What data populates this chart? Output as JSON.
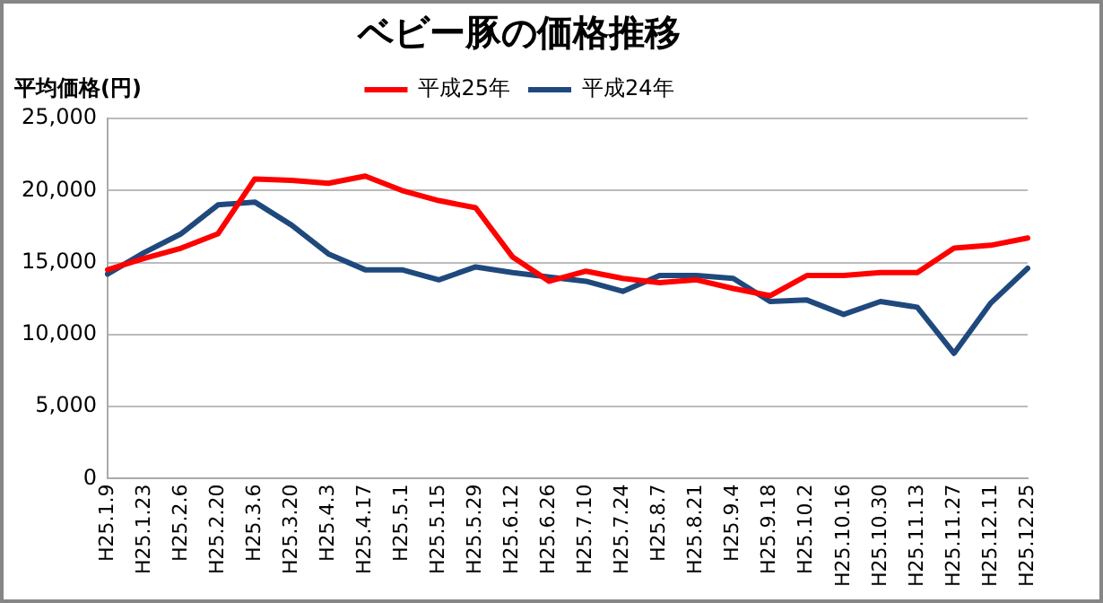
{
  "chart_data": {
    "type": "line",
    "title": "ベビー豚の価格推移",
    "ylabel": "平均価格(円)",
    "categories": [
      "H25.1.9",
      "H25.1.23",
      "H25.2.6",
      "H25.2.20",
      "H25.3.6",
      "H25.3.20",
      "H25.4.3",
      "H25.4.17",
      "H25.5.1",
      "H25.5.15",
      "H25.5.29",
      "H25.6.12",
      "H25.6.26",
      "H25.7.10",
      "H25.7.24",
      "H25.8.7",
      "H25.8.21",
      "H25.9.4",
      "H25.9.18",
      "H25.10.2",
      "H25.10.16",
      "H25.10.30",
      "H25.11.13",
      "H25.11.27",
      "H25.12.11",
      "H25.12.25"
    ],
    "series": [
      {
        "name": "平成25年",
        "color": "#ff0000",
        "values": [
          14500,
          15300,
          16000,
          17000,
          20800,
          20700,
          20500,
          21000,
          20000,
          19300,
          18800,
          15400,
          13700,
          14400,
          13900,
          13600,
          13800,
          13200,
          12700,
          14100,
          14100,
          14300,
          14300,
          16000,
          16200,
          16700
        ]
      },
      {
        "name": "平成24年",
        "color": "#1f497d",
        "values": [
          14200,
          15700,
          17000,
          19000,
          19200,
          17600,
          15600,
          14500,
          14500,
          13800,
          14700,
          14300,
          14000,
          13700,
          13000,
          14100,
          14100,
          13900,
          12300,
          12400,
          11400,
          12300,
          11900,
          8700,
          12200,
          14600
        ]
      }
    ],
    "ylim": [
      0,
      25000
    ],
    "yticks": [
      {
        "value": 0,
        "label": "0"
      },
      {
        "value": 5000,
        "label": "5,000"
      },
      {
        "value": 10000,
        "label": "10,000"
      },
      {
        "value": 15000,
        "label": "15,000"
      },
      {
        "value": 20000,
        "label": "20,000"
      },
      {
        "value": 25000,
        "label": "25,000"
      }
    ],
    "grid": "y",
    "legend": "top",
    "marker": "none",
    "line_style": "solid"
  }
}
